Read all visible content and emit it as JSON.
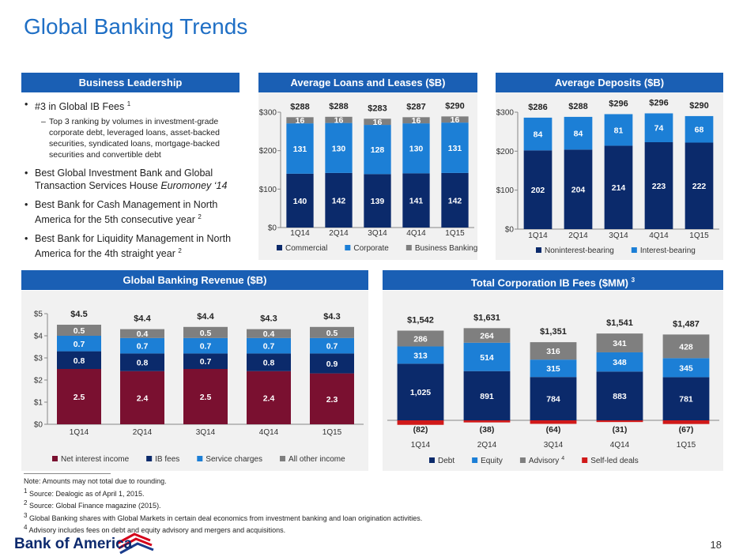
{
  "title": "Global Banking Trends",
  "business_leadership": {
    "header": "Business Leadership",
    "bullets": [
      {
        "text": "#3 in Global IB Fees",
        "note": "1",
        "sub": "Top 3 ranking by volumes in investment-grade corporate debt, leveraged loans, asset-backed securities, syndicated loans, mortgage-backed securities and convertible debt"
      },
      {
        "text": "Best Global Investment Bank and Global Transaction Services House",
        "emphasis": "Euromoney ‘14"
      },
      {
        "text": "Best Bank for Cash Management in North America for the 5th consecutive year",
        "note": "2"
      },
      {
        "text": "Best Bank for Liquidity Management in North America for the 4th straight year",
        "note": "2"
      }
    ]
  },
  "chart_data": [
    {
      "type": "bar",
      "stacked": true,
      "title": "Average Loans and Leases ($B)",
      "categories": [
        "1Q14",
        "2Q14",
        "3Q14",
        "4Q14",
        "1Q15"
      ],
      "series": [
        {
          "name": "Commercial",
          "color": "#0b2a6b",
          "values": [
            140,
            142,
            139,
            141,
            142
          ]
        },
        {
          "name": "Corporate",
          "color": "#1c7fd6",
          "values": [
            131,
            130,
            128,
            130,
            131
          ]
        },
        {
          "name": "Business Banking",
          "color": "#7f7f7f",
          "values": [
            16,
            16,
            16,
            16,
            16
          ]
        }
      ],
      "totals": {
        "values": [
          288,
          288,
          283,
          287,
          290
        ],
        "value_labels": [
          "$288",
          "$288",
          "$283",
          "$287",
          "$290"
        ]
      },
      "ylim": [
        0,
        300
      ],
      "yticks": [
        {
          "value": 0,
          "label": "$0"
        },
        {
          "value": 100,
          "label": "$100"
        },
        {
          "value": 200,
          "label": "$200"
        },
        {
          "value": 300,
          "label": "$300"
        }
      ],
      "legend": "bottom"
    },
    {
      "type": "bar",
      "stacked": true,
      "title": "Average Deposits ($B)",
      "categories": [
        "1Q14",
        "2Q14",
        "3Q14",
        "4Q14",
        "1Q15"
      ],
      "series": [
        {
          "name": "Noninterest-bearing",
          "color": "#0b2a6b",
          "values": [
            202,
            204,
            214,
            223,
            222
          ]
        },
        {
          "name": "Interest-bearing",
          "color": "#1c7fd6",
          "values": [
            84,
            84,
            81,
            74,
            68
          ]
        }
      ],
      "totals": {
        "values": [
          286,
          288,
          296,
          296,
          290
        ],
        "value_labels": [
          "$286",
          "$288",
          "$296",
          "$296",
          "$290"
        ]
      },
      "ylim": [
        0,
        300
      ],
      "yticks": [
        {
          "value": 0,
          "label": "$0"
        },
        {
          "value": 100,
          "label": "$100"
        },
        {
          "value": 200,
          "label": "$200"
        },
        {
          "value": 300,
          "label": "$300"
        }
      ],
      "legend": "bottom"
    },
    {
      "type": "bar",
      "stacked": true,
      "title": "Global Banking Revenue ($B)",
      "categories": [
        "1Q14",
        "2Q14",
        "3Q14",
        "4Q14",
        "1Q15"
      ],
      "series": [
        {
          "name": "Net interest income",
          "color": "#7a1030",
          "values": [
            2.5,
            2.4,
            2.5,
            2.4,
            2.3
          ]
        },
        {
          "name": "IB fees",
          "color": "#0b2a6b",
          "values": [
            0.8,
            0.8,
            0.7,
            0.8,
            0.9
          ]
        },
        {
          "name": "Service charges",
          "color": "#1c7fd6",
          "values": [
            0.7,
            0.7,
            0.7,
            0.7,
            0.7
          ]
        },
        {
          "name": "All other income",
          "color": "#7f7f7f",
          "values": [
            0.5,
            0.4,
            0.5,
            0.4,
            0.5
          ]
        }
      ],
      "totals": {
        "values": [
          4.5,
          4.4,
          4.4,
          4.3,
          4.3
        ],
        "value_labels": [
          "$4.5",
          "$4.4",
          "$4.4",
          "$4.3",
          "$4.3"
        ]
      },
      "ylim": [
        0,
        5
      ],
      "yticks": [
        {
          "value": 0,
          "label": "$0"
        },
        {
          "value": 1,
          "label": "$1"
        },
        {
          "value": 2,
          "label": "$2"
        },
        {
          "value": 3,
          "label": "$3"
        },
        {
          "value": 4,
          "label": "$4"
        },
        {
          "value": 5,
          "label": "$5"
        }
      ],
      "legend": "bottom"
    },
    {
      "type": "bar",
      "stacked": true,
      "title": "Total Corporation IB Fees ($MM)",
      "title_note": "3",
      "categories": [
        "1Q14",
        "2Q14",
        "3Q14",
        "4Q14",
        "1Q15"
      ],
      "series": [
        {
          "name": "Debt",
          "color": "#0b2a6b",
          "values": [
            1025,
            891,
            784,
            883,
            781
          ],
          "value_labels": [
            "1,025",
            "891",
            "784",
            "883",
            "781"
          ]
        },
        {
          "name": "Equity",
          "color": "#1c7fd6",
          "values": [
            313,
            514,
            315,
            348,
            345
          ]
        },
        {
          "name": "Advisory",
          "name_note": "4",
          "color": "#7f7f7f",
          "values": [
            286,
            264,
            316,
            341,
            428
          ]
        },
        {
          "name": "Self-led deals",
          "color": "#d01919",
          "values": [
            -82,
            -38,
            -64,
            -31,
            -67
          ],
          "value_labels": [
            "(82)",
            "(38)",
            "(64)",
            "(31)",
            "(67)"
          ]
        }
      ],
      "totals": {
        "values": [
          1542,
          1631,
          1351,
          1541,
          1487
        ],
        "value_labels": [
          "$1,542",
          "$1,631",
          "$1,351",
          "$1,541",
          "$1,487"
        ]
      },
      "legend": "bottom"
    }
  ],
  "footnotes": [
    {
      "text": "Note: Amounts may not total due to rounding."
    },
    {
      "mark": "1",
      "text": "Source: Dealogic as of April 1, 2015."
    },
    {
      "mark": "2",
      "text": "Source: Global Finance magazine (2015)."
    },
    {
      "mark": "3",
      "text": "Global Banking shares with Global Markets in certain deal economics from investment banking and loan origination activities."
    },
    {
      "mark": "4",
      "text": "Advisory includes fees on debt and equity advisory and mergers and acquisitions."
    }
  ],
  "logo": "Bank of America",
  "page_number": "18"
}
